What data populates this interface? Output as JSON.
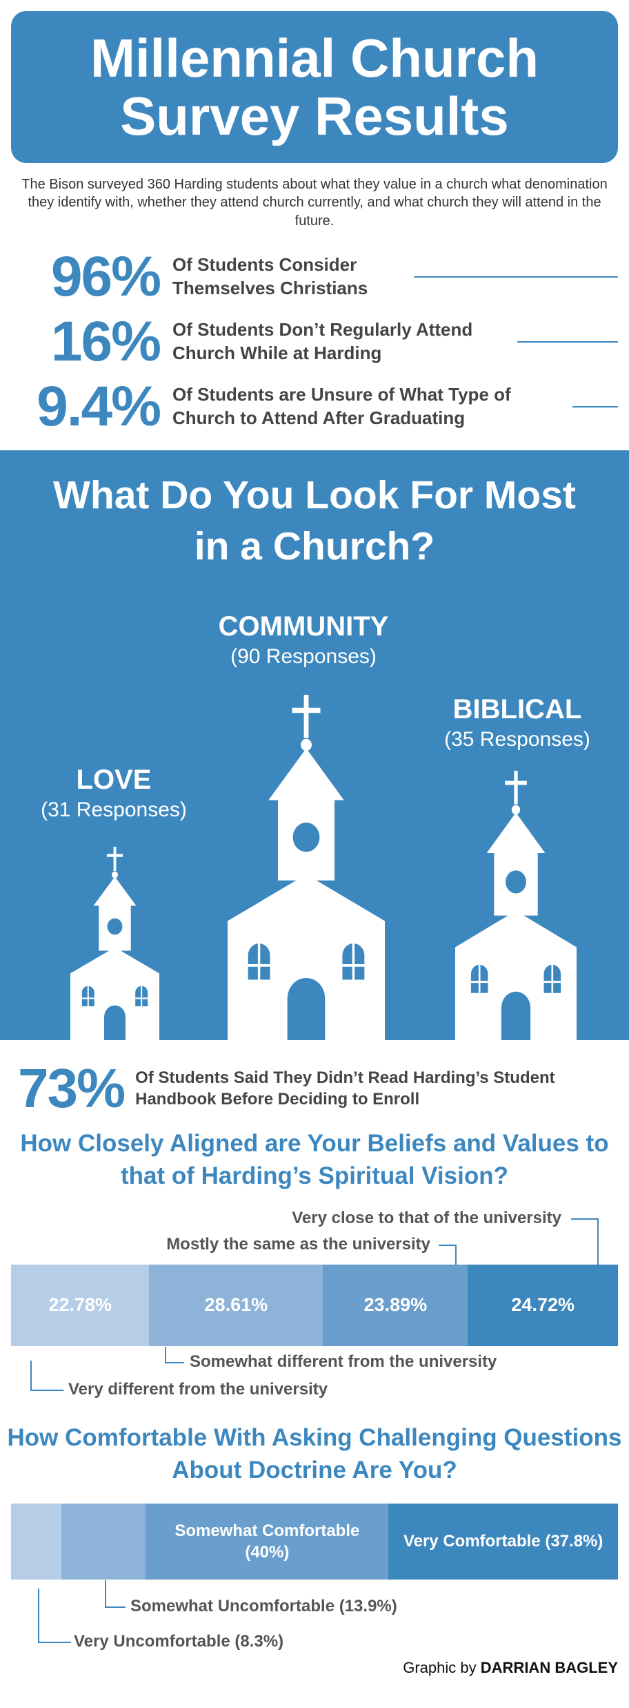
{
  "header": {
    "title": "Millennial Church Survey Results",
    "intro": "The Bison surveyed 360 Harding students about what they value in a church what denomination they identify with, whether they attend church currently, and what church they will attend in the future."
  },
  "stats": [
    {
      "value": "96%",
      "label": "Of Students Consider Themselves Christians"
    },
    {
      "value": "16%",
      "label": "Of Students Don’t Regularly Attend Church While at Harding"
    },
    {
      "value": "9.4%",
      "label": "Of Students are Unsure of What Type of Church to Attend After Graduating"
    }
  ],
  "look_for": {
    "title": "What Do You Look For Most in a Church?",
    "items": [
      {
        "label": "COMMUNITY",
        "responses": "(90 Responses)"
      },
      {
        "label": "BIBLICAL",
        "responses": "(35 Responses)"
      },
      {
        "label": "LOVE",
        "responses": "(31 Responses)"
      }
    ]
  },
  "handbook": {
    "value": "73%",
    "label": "Of Students Said They Didn’t Read Harding’s Student Handbook Before Deciding to Enroll"
  },
  "alignment": {
    "title": "How Closely Aligned are Your Beliefs and Values to that of Harding’s Spiritual Vision?",
    "segments": [
      {
        "name": "Very different from the university",
        "value": 22.78,
        "label": "22.78%",
        "color": "#b5cde6"
      },
      {
        "name": "Somewhat different from the university",
        "value": 28.61,
        "label": "28.61%",
        "color": "#8db3d8"
      },
      {
        "name": "Mostly the same as the university",
        "value": 23.89,
        "label": "23.89%",
        "color": "#6a9ecd"
      },
      {
        "name": "Very close to that of the university",
        "value": 24.72,
        "label": "24.72%",
        "color": "#3d87bf"
      }
    ]
  },
  "comfort": {
    "title": "How Comfortable With Asking Challenging Questions About Doctrine Are You?",
    "segments": [
      {
        "name": "Very Uncomfortable (8.3%)",
        "value": 8.3,
        "color": "#b5cde6"
      },
      {
        "name": "Somewhat Uncomfortable (13.9%)",
        "value": 13.9,
        "color": "#8db3d8"
      },
      {
        "name": "Somewhat Comfortable (40%)",
        "value": 40,
        "color": "#6a9ecd"
      },
      {
        "name": "Very Comfortable (37.8%)",
        "value": 37.8,
        "color": "#3d87bf"
      }
    ]
  },
  "credit": {
    "prefix": "Graphic by",
    "name": "DARRIAN BAGLEY"
  }
}
